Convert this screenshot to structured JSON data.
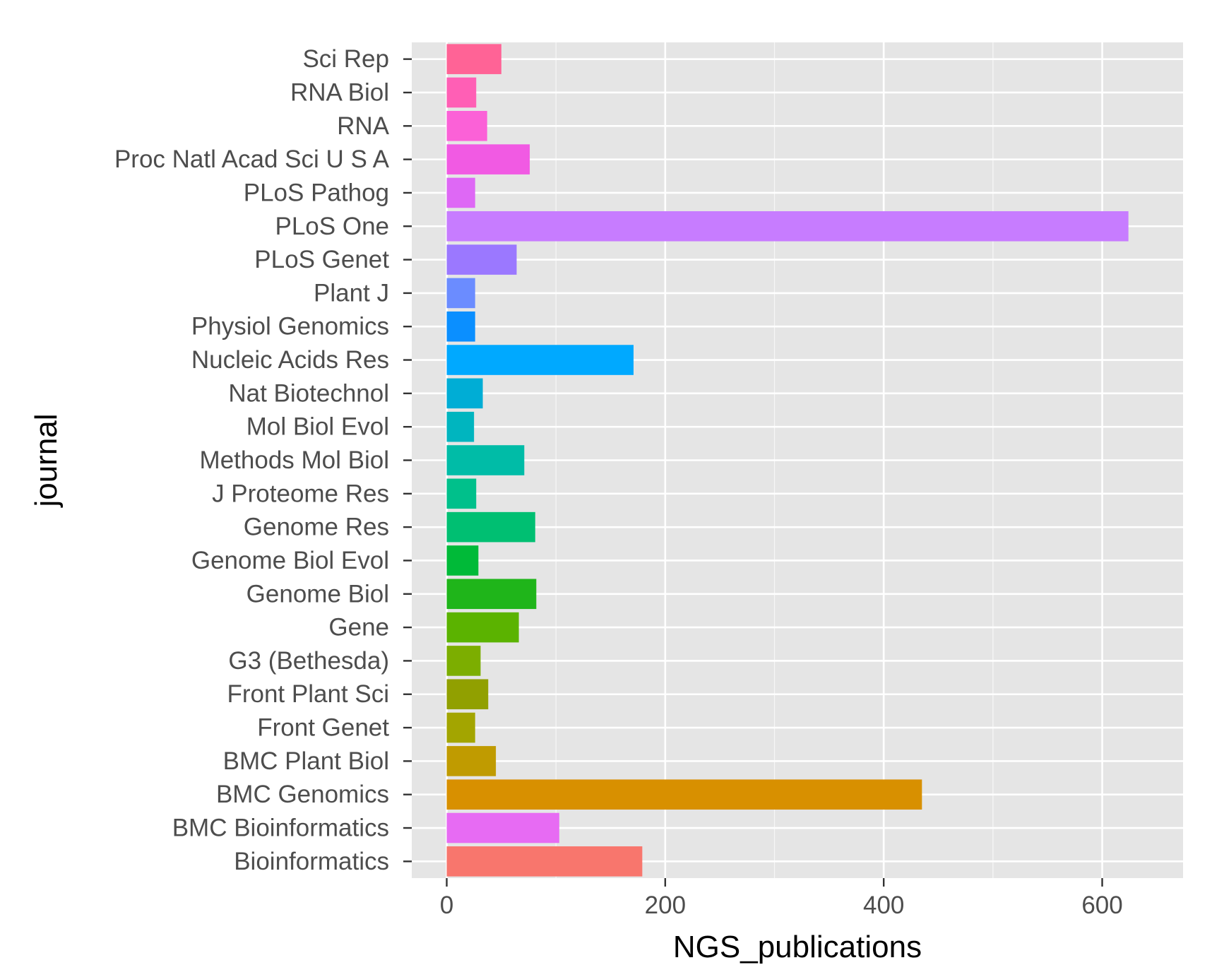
{
  "chart_data": {
    "type": "bar",
    "orientation": "horizontal",
    "xlabel": "NGS_publications",
    "ylabel": "journal",
    "xlim": [
      -32,
      674
    ],
    "xticks": [
      0,
      200,
      400,
      600
    ],
    "grid": true,
    "legend": "none",
    "categories": [
      "Bioinformatics",
      "BMC Bioinformatics",
      "BMC Genomics",
      "BMC Plant Biol",
      "Front Genet",
      "Front Plant Sci",
      "G3 (Bethesda)",
      "Gene",
      "Genome Biol",
      "Genome Biol Evol",
      "Genome Res",
      "J Proteome Res",
      "Methods Mol Biol",
      "Mol Biol Evol",
      "Nat Biotechnol",
      "Nucleic Acids Res",
      "Physiol Genomics",
      "Plant J",
      "PLoS Genet",
      "PLoS One",
      "PLoS Pathog",
      "Proc Natl Acad Sci U S A",
      "RNA",
      "RNA Biol",
      "Sci Rep"
    ],
    "values": [
      179,
      103,
      435,
      45,
      26,
      38,
      31,
      66,
      82,
      29,
      81,
      27,
      71,
      25,
      33,
      171,
      26,
      26,
      64,
      624,
      26,
      76,
      37,
      27,
      50
    ],
    "colors": [
      "#F8766D",
      "#E76BF3",
      "#D89000",
      "#C09B00",
      "#A3A500",
      "#91A000",
      "#7CAE00",
      "#5BB300",
      "#1FB51A",
      "#00BA38",
      "#00BF72",
      "#00C08B",
      "#00BCA7",
      "#00B5BF",
      "#00ADD5",
      "#00A9FF",
      "#0B8FFF",
      "#6B8CFF",
      "#9B78FF",
      "#C77CFF",
      "#DE68F5",
      "#F15AE3",
      "#FB61D7",
      "#FF5FB5",
      "#FF6396"
    ],
    "panel_background": "#E5E5E5",
    "gridline_color": "#FFFFFF"
  }
}
